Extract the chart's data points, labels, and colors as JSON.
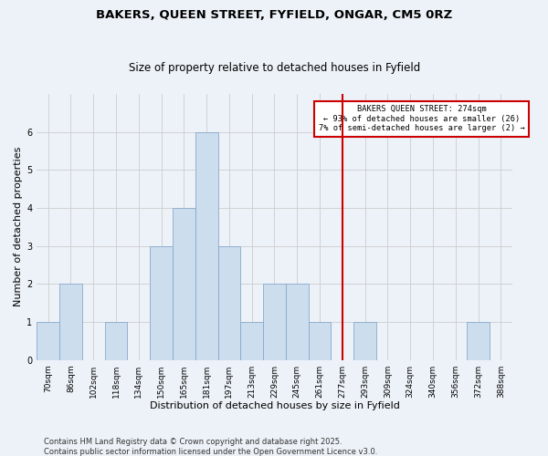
{
  "title": "BAKERS, QUEEN STREET, FYFIELD, ONGAR, CM5 0RZ",
  "subtitle": "Size of property relative to detached houses in Fyfield",
  "xlabel": "Distribution of detached houses by size in Fyfield",
  "ylabel": "Number of detached properties",
  "categories": [
    "70sqm",
    "86sqm",
    "102sqm",
    "118sqm",
    "134sqm",
    "150sqm",
    "165sqm",
    "181sqm",
    "197sqm",
    "213sqm",
    "229sqm",
    "245sqm",
    "261sqm",
    "277sqm",
    "293sqm",
    "309sqm",
    "324sqm",
    "340sqm",
    "356sqm",
    "372sqm",
    "388sqm"
  ],
  "values": [
    1,
    2,
    0,
    1,
    0,
    3,
    4,
    6,
    3,
    1,
    2,
    2,
    1,
    0,
    1,
    0,
    0,
    0,
    0,
    1,
    0
  ],
  "bar_color": "#ccdded",
  "bar_edge_color": "#88aacc",
  "grid_color": "#cccccc",
  "background_color": "#edf2f8",
  "vline_color": "#cc0000",
  "vline_x_index": 13.0,
  "annotation_text": "BAKERS QUEEN STREET: 274sqm\n← 93% of detached houses are smaller (26)\n7% of semi-detached houses are larger (2) →",
  "ylim": [
    0,
    7
  ],
  "yticks": [
    0,
    1,
    2,
    3,
    4,
    5,
    6
  ],
  "footer": "Contains HM Land Registry data © Crown copyright and database right 2025.\nContains public sector information licensed under the Open Government Licence v3.0.",
  "title_fontsize": 9.5,
  "subtitle_fontsize": 8.5,
  "label_fontsize": 8,
  "tick_fontsize": 6.5,
  "footer_fontsize": 6
}
